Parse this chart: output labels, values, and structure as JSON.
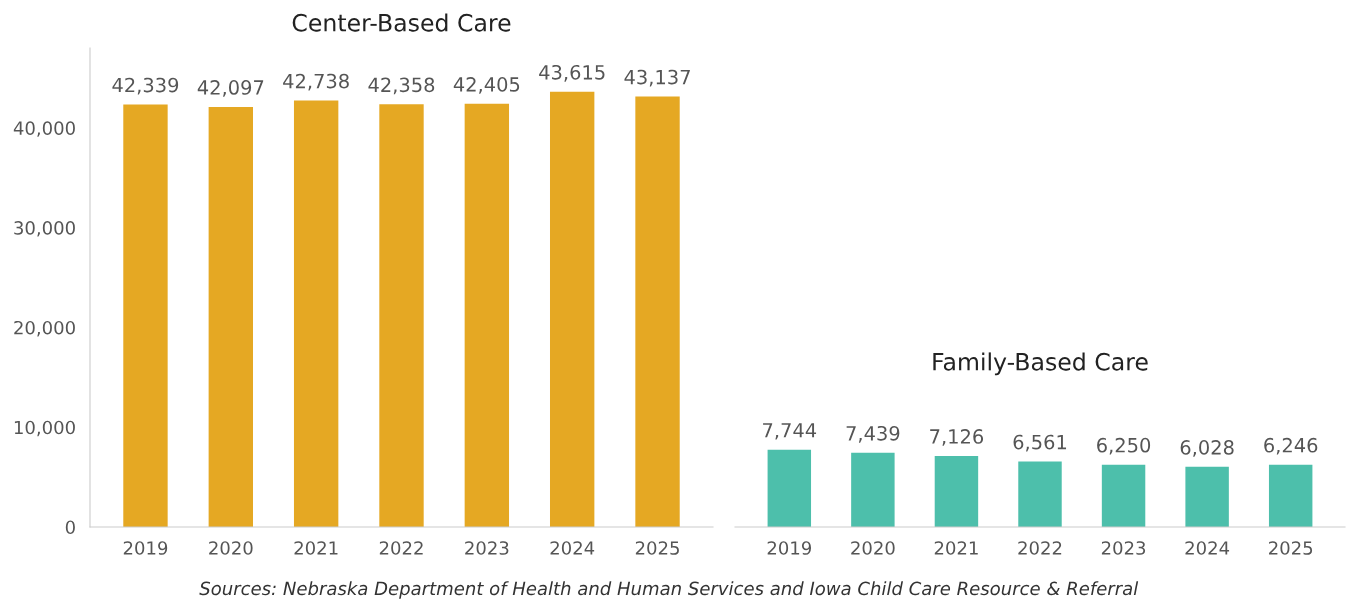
{
  "chart_data": [
    {
      "type": "bar",
      "title": "Center-Based Care",
      "categories": [
        "2019",
        "2020",
        "2021",
        "2022",
        "2023",
        "2024",
        "2025"
      ],
      "values": [
        42339,
        42097,
        42738,
        42358,
        42405,
        43615,
        43137
      ],
      "color": "#e5a823",
      "ylim": [
        0,
        48000
      ],
      "yticks": [
        {
          "value": 0,
          "label": "0"
        },
        {
          "value": 10000,
          "label": "10,000"
        },
        {
          "value": 20000,
          "label": "20,000"
        },
        {
          "value": 30000,
          "label": "30,000"
        },
        {
          "value": 40000,
          "label": "40,000"
        }
      ],
      "value_labels": [
        "42,339",
        "42,097",
        "42,738",
        "42,358",
        "42,405",
        "43,615",
        "43,137"
      ],
      "grid": false,
      "legend": false
    },
    {
      "type": "bar",
      "title": "Family-Based Care",
      "categories": [
        "2019",
        "2020",
        "2021",
        "2022",
        "2023",
        "2024",
        "2025"
      ],
      "values": [
        7744,
        7439,
        7126,
        6561,
        6250,
        6028,
        6246
      ],
      "color": "#4dbfab",
      "tick_labels": "x",
      "value_labels": [
        "7,744",
        "7,439",
        "7,126",
        "6,561",
        "6,250",
        "6,028",
        "6,246"
      ],
      "grid": false,
      "legend": false,
      "annotations": [
        "Sources: Nebraska Department of Health and Human Services and Iowa Child Care Resource & Referral"
      ]
    }
  ]
}
